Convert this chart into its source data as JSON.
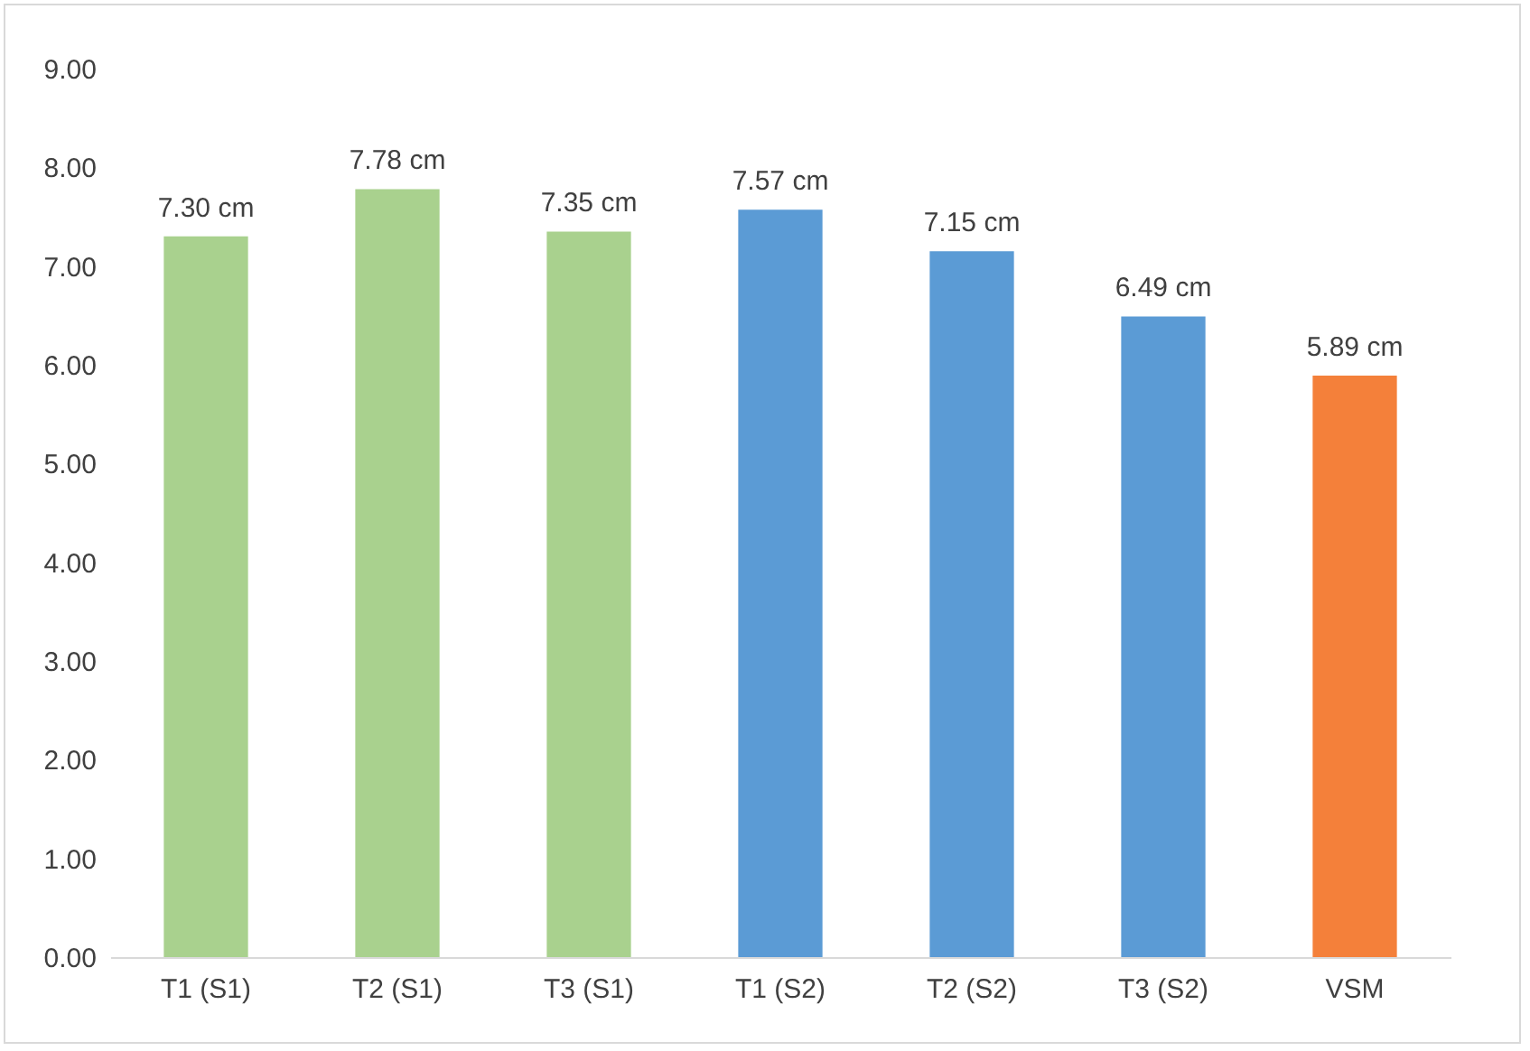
{
  "chart_data": {
    "type": "bar",
    "categories": [
      "T1 (S1)",
      "T2 (S1)",
      "T3 (S1)",
      "T1 (S2)",
      "T2 (S2)",
      "T3 (S2)",
      "VSM"
    ],
    "values": [
      7.3,
      7.78,
      7.35,
      7.57,
      7.15,
      6.49,
      5.89
    ],
    "colors": [
      "#a9d18e",
      "#a9d18e",
      "#a9d18e",
      "#5b9bd5",
      "#5b9bd5",
      "#5b9bd5",
      "#f4803a"
    ],
    "value_labels": [
      "7.30 cm",
      "7.78 cm",
      "7.35 cm",
      "7.57 cm",
      "7.15 cm",
      "6.49 cm",
      "5.89 cm"
    ],
    "ylim": [
      0,
      9
    ],
    "yticks": [
      {
        "value": 0,
        "label": "0.00"
      },
      {
        "value": 1,
        "label": "1.00"
      },
      {
        "value": 2,
        "label": "2.00"
      },
      {
        "value": 3,
        "label": "3.00"
      },
      {
        "value": 4,
        "label": "4.00"
      },
      {
        "value": 5,
        "label": "5.00"
      },
      {
        "value": 6,
        "label": "6.00"
      },
      {
        "value": 7,
        "label": "7.00"
      },
      {
        "value": 8,
        "label": "8.00"
      },
      {
        "value": 9,
        "label": "9.00"
      }
    ],
    "grid": false,
    "legend": false
  }
}
